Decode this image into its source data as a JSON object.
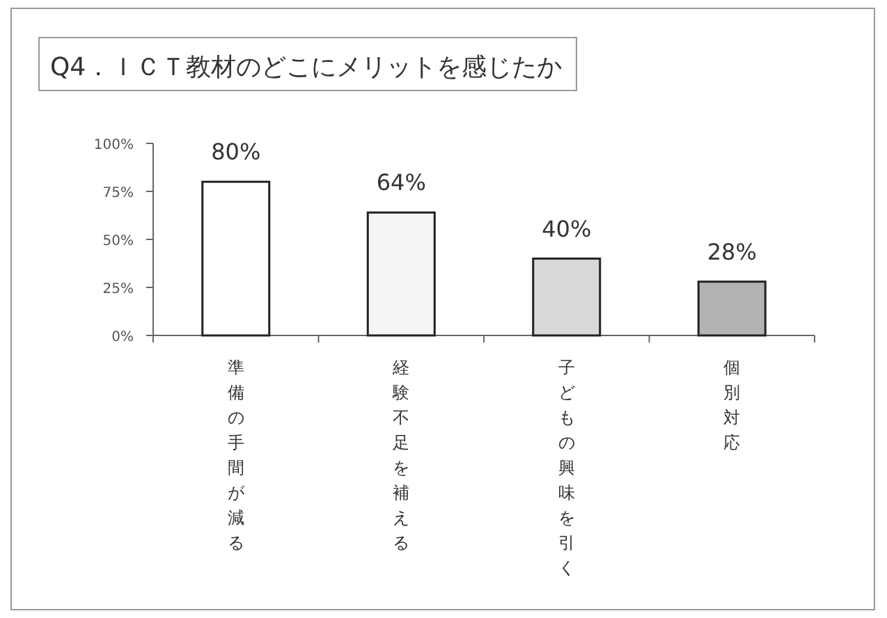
{
  "chart_data": {
    "type": "bar",
    "title": "Q4．ＩＣＴ教材のどこにメリットを感じたか",
    "categories": [
      "準備の手間が減る",
      "経験不足を補える",
      "子どもの興味を引く",
      "個別対応"
    ],
    "values": [
      80,
      64,
      40,
      28
    ],
    "value_labels": [
      "80%",
      "64%",
      "40%",
      "28%"
    ],
    "colors": [
      "#ffffff",
      "#f5f5f5",
      "#d9d9d9",
      "#b3b3b3"
    ],
    "ylim": [
      0,
      100
    ],
    "yticks": [
      {
        "value": 0,
        "label": "0%"
      },
      {
        "value": 25,
        "label": "25%"
      },
      {
        "value": 50,
        "label": "50%"
      },
      {
        "value": 75,
        "label": "75%"
      },
      {
        "value": 100,
        "label": "100%"
      }
    ]
  }
}
